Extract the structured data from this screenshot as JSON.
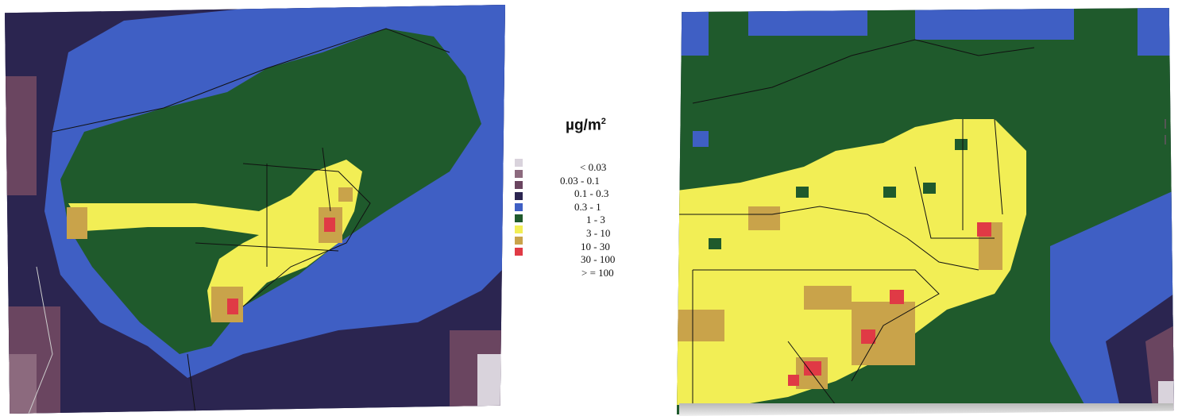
{
  "legend": {
    "unit_prefix": "µg/m",
    "unit_exponent": "2",
    "classes": [
      {
        "label": "< 0.03",
        "color": "#d9d3dc"
      },
      {
        "label": "0.03 - 0.1",
        "color": "#8c6a7e"
      },
      {
        "label": "0.1 - 0.3",
        "color": "#6a4560"
      },
      {
        "label": "0.3 - 1",
        "color": "#2b2550"
      },
      {
        "label": "1 - 3",
        "color": "#3f5fc4"
      },
      {
        "label": "3 - 10",
        "color": "#1f5a2c"
      },
      {
        "label": "10 - 30",
        "color": "#f2ee55"
      },
      {
        "label": "30 - 100",
        "color": "#c9a34a"
      },
      {
        "label": "> = 100",
        "color": "#e03a45"
      }
    ]
  }
}
